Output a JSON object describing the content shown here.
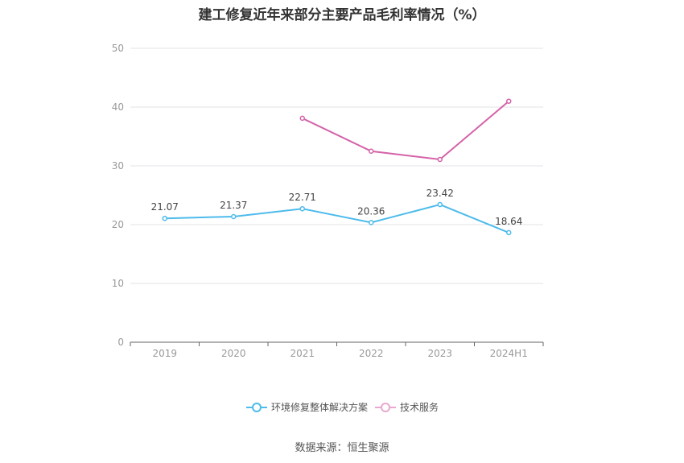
{
  "title": "建工修复近年来部分主要产品毛利率情况（%）",
  "source": "数据来源：恒生聚源",
  "chart_data": {
    "type": "line",
    "title": "建工修复近年来部分主要产品毛利率情况（%）",
    "categories": [
      "2019",
      "2020",
      "2021",
      "2022",
      "2023",
      "2024H1"
    ],
    "ylim": [
      0,
      50
    ],
    "yticks": [
      0,
      10,
      20,
      30,
      40,
      50
    ],
    "grid": true,
    "legend_position": "bottom",
    "series": [
      {
        "name": "环境修复整体解决方案",
        "color": "#4dbbeb",
        "values": [
          21.07,
          21.37,
          22.71,
          20.36,
          23.42,
          18.64
        ],
        "labels": [
          "21.07",
          "21.37",
          "22.71",
          "20.36",
          "23.42",
          "18.64"
        ]
      },
      {
        "name": "技术服务",
        "color": "#d462a8",
        "values": [
          null,
          null,
          38.1,
          32.5,
          31.1,
          41.0
        ]
      }
    ]
  }
}
